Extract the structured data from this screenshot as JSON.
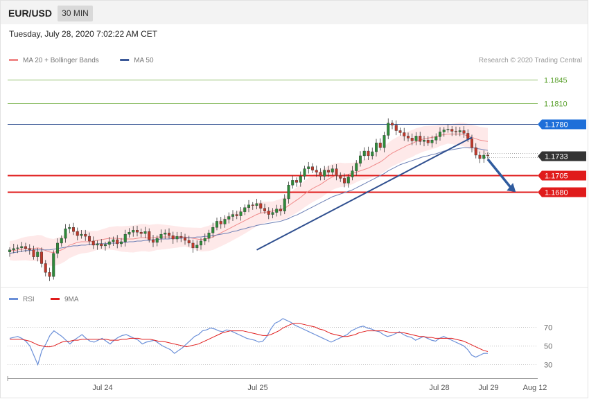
{
  "header": {
    "symbol": "EUR/USD",
    "interval": "30 MIN",
    "datetime": "Tuesday, July 28, 2020 7:02:22 AM CET"
  },
  "price_panel": {
    "legend": [
      {
        "label": "MA 20 + Bollinger Bands",
        "color": "#f08a8a"
      },
      {
        "label": "MA 50",
        "color": "#3b5998"
      }
    ],
    "credit": "Research © 2020 Trading Central",
    "levels": [
      {
        "value": 1.1845,
        "label": "1.1845",
        "color": "#8fbf6a",
        "style": "line-label"
      },
      {
        "value": 1.181,
        "label": "1.1810",
        "color": "#8fbf6a",
        "style": "line-label"
      },
      {
        "value": 1.178,
        "label": "1.1780",
        "color": "#1e6fd9",
        "style": "tag"
      },
      {
        "value": 1.1733,
        "label": "1.1733",
        "color": "#333333",
        "style": "tag-current"
      },
      {
        "value": 1.1705,
        "label": "1.1705",
        "color": "#e01b1b",
        "style": "tag"
      },
      {
        "value": 1.168,
        "label": "1.1680",
        "color": "#e01b1b",
        "style": "tag"
      }
    ]
  },
  "rsi_panel": {
    "legend": [
      {
        "label": "RSI",
        "color": "#6a8fd8"
      },
      {
        "label": "9MA",
        "color": "#e01b1b"
      }
    ],
    "ticks": [
      "70",
      "50",
      "30"
    ],
    "tick_values": [
      70,
      50,
      30
    ]
  },
  "x_axis": {
    "ticks": [
      "Jul 24",
      "Jul 25",
      "Jul 28",
      "Jul 29",
      "Aug 12"
    ]
  },
  "chart_data": {
    "type": "candlestick",
    "instrument": "EUR/USD",
    "timeframe": "30 MIN",
    "ylim": [
      1.1545,
      1.1865
    ],
    "colors": {
      "up": "#2e8b3a",
      "down": "#c0392b",
      "ma20": "#f08a8a",
      "ma50": "#6b7fb5",
      "bands": "#fde2e2",
      "trendline": "#2f4f8f",
      "arrow": "#2f5b9e"
    },
    "candles_close": [
      1.1595,
      1.1597,
      1.1598,
      1.16,
      1.1597,
      1.1595,
      1.1585,
      1.1592,
      1.1575,
      1.1562,
      1.1556,
      1.159,
      1.1605,
      1.1612,
      1.1626,
      1.1628,
      1.1622,
      1.1616,
      1.1618,
      1.1615,
      1.1608,
      1.1602,
      1.1604,
      1.1601,
      1.1603,
      1.1607,
      1.161,
      1.1604,
      1.1607,
      1.1618,
      1.1621,
      1.1624,
      1.1621,
      1.1619,
      1.1622,
      1.161,
      1.1606,
      1.1612,
      1.1618,
      1.162,
      1.1616,
      1.1611,
      1.1615,
      1.1613,
      1.1609,
      1.1605,
      1.1598,
      1.1602,
      1.1608,
      1.1612,
      1.162,
      1.1628,
      1.1637,
      1.1633,
      1.164,
      1.1644,
      1.1647,
      1.1645,
      1.1651,
      1.1657,
      1.1661,
      1.166,
      1.1663,
      1.1656,
      1.1652,
      1.1647,
      1.165,
      1.1655,
      1.1652,
      1.167,
      1.169,
      1.1697,
      1.1694,
      1.1703,
      1.1714,
      1.1717,
      1.1712,
      1.1709,
      1.1703,
      1.1712,
      1.1709,
      1.1714,
      1.1704,
      1.17,
      1.1693,
      1.1702,
      1.1711,
      1.1722,
      1.1733,
      1.174,
      1.1733,
      1.1739,
      1.1752,
      1.1745,
      1.1763,
      1.1781,
      1.1778,
      1.177,
      1.1767,
      1.1762,
      1.1759,
      1.1755,
      1.1762,
      1.1754,
      1.1756,
      1.1752,
      1.1756,
      1.1761,
      1.1768,
      1.1771,
      1.1772,
      1.1769,
      1.1768,
      1.177,
      1.1766,
      1.1758,
      1.1745,
      1.1734,
      1.1729,
      1.1734,
      1.1733
    ],
    "ma20_values": [
      1.1594,
      1.1594,
      1.1595,
      1.1596,
      1.1597,
      1.1597,
      1.1597,
      1.1598,
      1.1597,
      1.1594,
      1.1592,
      1.1591,
      1.1593,
      1.1595,
      1.1598,
      1.1602,
      1.1604,
      1.1606,
      1.1607,
      1.1607,
      1.1607,
      1.1608,
      1.1609,
      1.161,
      1.1611,
      1.1612,
      1.1612,
      1.1612,
      1.1611,
      1.1611,
      1.1611,
      1.1611,
      1.1612,
      1.1613,
      1.1613,
      1.1612,
      1.1613,
      1.1614,
      1.1614,
      1.1614,
      1.1614,
      1.1614,
      1.1614,
      1.1614,
      1.1614,
      1.1613,
      1.1612,
      1.1611,
      1.161,
      1.1611,
      1.1612,
      1.1614,
      1.1617,
      1.162,
      1.1623,
      1.1626,
      1.1629,
      1.1632,
      1.1635,
      1.1638,
      1.1641,
      1.1644,
      1.1647,
      1.1649,
      1.165,
      1.1651,
      1.1652,
      1.1653,
      1.1654,
      1.1656,
      1.166,
      1.1664,
      1.1668,
      1.1672,
      1.1677,
      1.1681,
      1.1685,
      1.1688,
      1.1691,
      1.1695,
      1.1699,
      1.1702,
      1.1704,
      1.1705,
      1.1705,
      1.1706,
      1.1707,
      1.1709,
      1.1711,
      1.1713,
      1.1715,
      1.1718,
      1.1721,
      1.1724,
      1.1728,
      1.1733,
      1.1737,
      1.174,
      1.1743,
      1.1746,
      1.1749,
      1.1751,
      1.1754,
      1.1756,
      1.1758,
      1.1759,
      1.176,
      1.1761,
      1.1763,
      1.1764,
      1.1765,
      1.1765,
      1.1765,
      1.1765,
      1.1764,
      1.1762,
      1.176,
      1.1758,
      1.1756,
      1.1755,
      1.1754
    ],
    "ma50_values": [
      1.159,
      1.1591,
      1.1592,
      1.1593,
      1.1594,
      1.1594,
      1.1595,
      1.1595,
      1.1595,
      1.1595,
      1.1595,
      1.1596,
      1.1597,
      1.1598,
      1.1599,
      1.16,
      1.1601,
      1.1601,
      1.1602,
      1.1602,
      1.1603,
      1.1603,
      1.1604,
      1.1604,
      1.1604,
      1.1605,
      1.1605,
      1.1605,
      1.1606,
      1.1606,
      1.1607,
      1.1607,
      1.1608,
      1.1608,
      1.1609,
      1.1609,
      1.161,
      1.161,
      1.1611,
      1.1611,
      1.1611,
      1.1612,
      1.1612,
      1.1612,
      1.1613,
      1.1613,
      1.1613,
      1.1614,
      1.1614,
      1.1615,
      1.1615,
      1.1616,
      1.1617,
      1.1618,
      1.1619,
      1.162,
      1.1622,
      1.1623,
      1.1625,
      1.1626,
      1.1628,
      1.1629,
      1.1631,
      1.1632,
      1.1633,
      1.1634,
      1.1635,
      1.1636,
      1.1637,
      1.1639,
      1.1641,
      1.1644,
      1.1646,
      1.1649,
      1.1652,
      1.1655,
      1.1658,
      1.1661,
      1.1664,
      1.1667,
      1.167,
      1.1673,
      1.1675,
      1.1677,
      1.1679,
      1.1681,
      1.1683,
      1.1686,
      1.1689,
      1.1692,
      1.1695,
      1.1698,
      1.1701,
      1.1704,
      1.1707,
      1.1711,
      1.1714,
      1.1717,
      1.172,
      1.1722,
      1.1724,
      1.1726,
      1.1728,
      1.173,
      1.1732,
      1.1733,
      1.1735,
      1.1736,
      1.1738,
      1.174,
      1.1741,
      1.1742,
      1.1743,
      1.1744,
      1.1745,
      1.1745,
      1.1745,
      1.1744,
      1.1743,
      1.1742,
      1.1741
    ],
    "trendline": [
      [
        62,
        1.1595
      ],
      [
        116,
        1.176
      ]
    ],
    "forecast_arrow": [
      [
        120,
        1.1728
      ],
      [
        127,
        1.168
      ]
    ],
    "rsi_values": [
      58,
      59,
      60,
      58,
      55,
      50,
      40,
      30,
      45,
      52,
      61,
      66,
      63,
      60,
      56,
      52,
      56,
      59,
      62,
      58,
      55,
      54,
      56,
      58,
      55,
      52,
      56,
      59,
      61,
      62,
      60,
      58,
      56,
      52,
      54,
      55,
      56,
      53,
      50,
      48,
      46,
      42,
      45,
      48,
      52,
      56,
      60,
      62,
      66,
      67,
      69,
      68,
      66,
      65,
      67,
      66,
      64,
      62,
      60,
      58,
      57,
      56,
      54,
      55,
      60,
      68,
      74,
      76,
      79,
      77,
      75,
      72,
      70,
      68,
      66,
      64,
      62,
      60,
      58,
      56,
      54,
      56,
      58,
      60,
      62,
      66,
      68,
      70,
      71,
      69,
      68,
      66,
      65,
      62,
      60,
      61,
      63,
      65,
      62,
      60,
      59,
      56,
      58,
      60,
      58,
      56,
      55,
      58,
      60,
      58,
      56,
      54,
      52,
      50,
      46,
      40,
      38,
      40,
      42,
      42
    ],
    "rsi_ma_values": [
      57,
      57,
      57,
      57,
      56,
      55,
      53,
      51,
      50,
      49,
      49,
      50,
      52,
      54,
      55,
      55,
      56,
      56,
      57,
      57,
      57,
      57,
      57,
      57,
      57,
      56,
      56,
      56,
      57,
      57,
      58,
      58,
      58,
      57,
      57,
      57,
      56,
      55,
      55,
      54,
      53,
      52,
      51,
      50,
      49,
      50,
      51,
      52,
      54,
      56,
      58,
      60,
      62,
      64,
      65,
      66,
      66,
      66,
      66,
      65,
      64,
      63,
      62,
      61,
      61,
      62,
      64,
      66,
      69,
      71,
      73,
      74,
      74,
      73,
      72,
      71,
      70,
      68,
      67,
      65,
      63,
      62,
      61,
      60,
      60,
      61,
      62,
      64,
      65,
      66,
      66,
      66,
      66,
      66,
      65,
      64,
      64,
      64,
      64,
      63,
      62,
      61,
      60,
      60,
      59,
      59,
      58,
      58,
      58,
      58,
      58,
      57,
      56,
      55,
      53,
      51,
      49,
      47,
      45,
      44
    ],
    "rsi_ylim": [
      20,
      90
    ],
    "x_tick_labels": [
      "Jul 24",
      "Jul 25",
      "Jul 28",
      "Jul 29",
      "Aug 12"
    ]
  }
}
